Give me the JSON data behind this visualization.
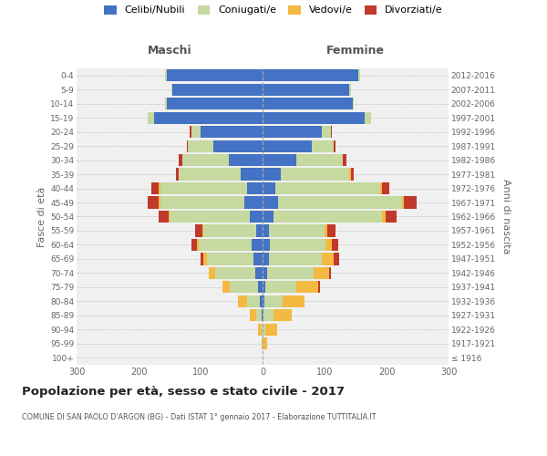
{
  "age_groups": [
    "100+",
    "95-99",
    "90-94",
    "85-89",
    "80-84",
    "75-79",
    "70-74",
    "65-69",
    "60-64",
    "55-59",
    "50-54",
    "45-49",
    "40-44",
    "35-39",
    "30-34",
    "25-29",
    "20-24",
    "15-19",
    "10-14",
    "5-9",
    "0-4"
  ],
  "birth_years": [
    "≤ 1916",
    "1917-1921",
    "1922-1926",
    "1927-1931",
    "1932-1936",
    "1937-1941",
    "1942-1946",
    "1947-1951",
    "1952-1956",
    "1957-1961",
    "1962-1966",
    "1967-1971",
    "1972-1976",
    "1977-1981",
    "1982-1986",
    "1987-1991",
    "1992-1996",
    "1997-2001",
    "2002-2006",
    "2007-2011",
    "2012-2016"
  ],
  "maschi": {
    "celibi": [
      0,
      0,
      0,
      2,
      5,
      8,
      12,
      15,
      18,
      10,
      20,
      30,
      25,
      35,
      55,
      80,
      100,
      175,
      155,
      145,
      155
    ],
    "coniugati": [
      0,
      0,
      2,
      8,
      20,
      45,
      65,
      75,
      85,
      85,
      130,
      135,
      140,
      100,
      75,
      40,
      15,
      10,
      2,
      2,
      2
    ],
    "vedovi": [
      0,
      2,
      5,
      10,
      15,
      12,
      10,
      5,
      3,
      2,
      2,
      2,
      2,
      0,
      0,
      0,
      0,
      0,
      0,
      0,
      0
    ],
    "divorziati": [
      0,
      0,
      0,
      0,
      0,
      0,
      0,
      5,
      8,
      12,
      15,
      18,
      12,
      5,
      5,
      2,
      2,
      0,
      0,
      0,
      0
    ]
  },
  "femmine": {
    "nubili": [
      0,
      0,
      0,
      2,
      3,
      5,
      8,
      10,
      12,
      10,
      18,
      25,
      20,
      30,
      55,
      80,
      95,
      165,
      145,
      140,
      155
    ],
    "coniugate": [
      0,
      2,
      5,
      15,
      30,
      50,
      75,
      85,
      90,
      90,
      175,
      200,
      170,
      110,
      75,
      35,
      15,
      10,
      2,
      2,
      2
    ],
    "vedove": [
      0,
      5,
      18,
      30,
      35,
      35,
      25,
      20,
      10,
      5,
      5,
      3,
      3,
      2,
      0,
      0,
      0,
      0,
      0,
      0,
      0
    ],
    "divorziate": [
      0,
      0,
      0,
      0,
      0,
      2,
      3,
      8,
      10,
      12,
      18,
      20,
      12,
      5,
      5,
      2,
      2,
      0,
      0,
      0,
      0
    ]
  },
  "colors": {
    "celibi_nubili": "#4472c4",
    "coniugati": "#c5d9a0",
    "vedovi": "#f4b942",
    "divorziati": "#c0392b"
  },
  "xlim": 300,
  "title": "Popolazione per età, sesso e stato civile - 2017",
  "subtitle": "COMUNE DI SAN PAOLO D'ARGON (BG) - Dati ISTAT 1° gennaio 2017 - Elaborazione TUTTITALIA.IT",
  "xlabel_left": "Maschi",
  "xlabel_right": "Femmine",
  "ylabel_left": "Fasce di età",
  "ylabel_right": "Anni di nascita",
  "bg_color": "#ffffff",
  "plot_bg": "#f0f0f0"
}
